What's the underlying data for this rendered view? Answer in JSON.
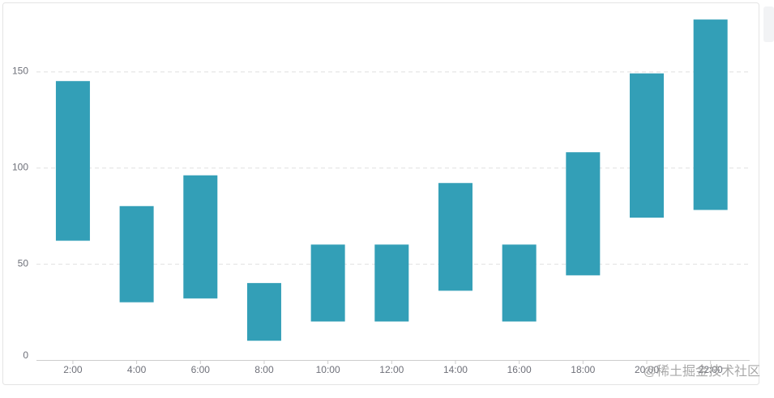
{
  "chart_data": {
    "type": "floating-bar",
    "categories": [
      "2:00",
      "4:00",
      "6:00",
      "8:00",
      "10:00",
      "12:00",
      "14:00",
      "16:00",
      "18:00",
      "20:00",
      "22:00"
    ],
    "low": [
      62,
      30,
      32,
      10,
      20,
      20,
      36,
      20,
      44,
      74,
      78
    ],
    "high": [
      145,
      80,
      96,
      40,
      60,
      60,
      92,
      60,
      108,
      149,
      177
    ],
    "color": "#339fb7",
    "ylim": [
      0,
      180
    ],
    "yticks": [
      0,
      50,
      100,
      150
    ],
    "grid": true,
    "watermark": "@稀土掘金技术社区"
  }
}
